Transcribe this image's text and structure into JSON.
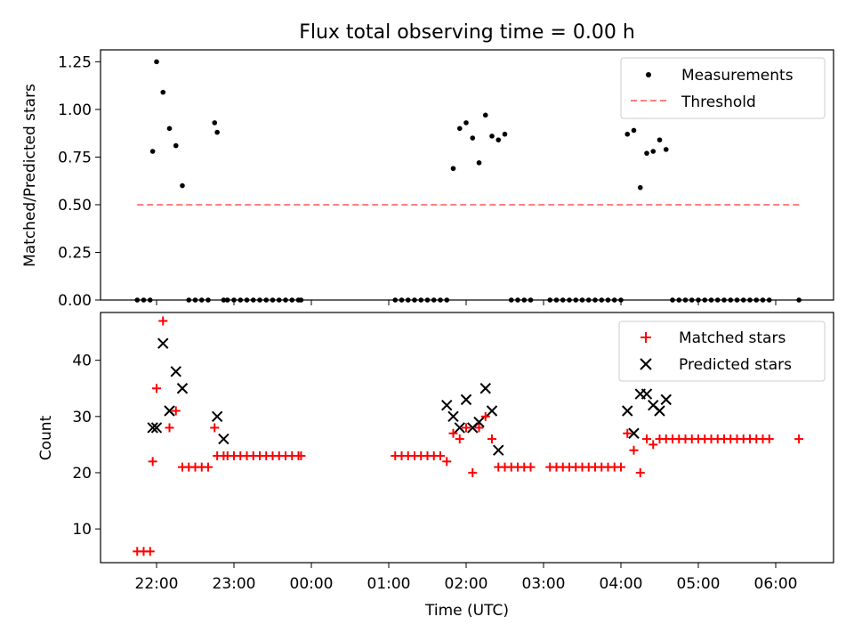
{
  "chart_data": [
    {
      "type": "scatter",
      "title": "Flux total observing time = 0.00 h",
      "xlabel": "",
      "ylabel": "Matched/Predicted stars",
      "ylim": [
        0,
        1.3125
      ],
      "yticks": [
        "0.00",
        "0.25",
        "0.50",
        "0.75",
        "1.00",
        "1.25"
      ],
      "ytick_values": [
        0,
        0.25,
        0.5,
        0.75,
        1.0,
        1.25
      ],
      "legend_position": "top-right",
      "series": [
        {
          "name": "Measurements",
          "marker": "dot",
          "color": "#000000",
          "x": [
            "21:45",
            "21:50",
            "21:55",
            "21:57",
            "22:00",
            "22:05",
            "22:10",
            "22:15",
            "22:20",
            "22:25",
            "22:30",
            "22:35",
            "22:40",
            "22:45",
            "22:47",
            "22:52",
            "22:55",
            "23:00",
            "23:05",
            "23:10",
            "23:15",
            "23:20",
            "23:25",
            "23:30",
            "23:35",
            "23:40",
            "23:45",
            "23:50",
            "23:52",
            "01:05",
            "01:10",
            "01:15",
            "01:20",
            "01:25",
            "01:30",
            "01:35",
            "01:40",
            "01:45",
            "01:50",
            "01:55",
            "02:00",
            "02:05",
            "02:10",
            "02:15",
            "02:20",
            "02:25",
            "02:30",
            "02:35",
            "02:40",
            "02:45",
            "02:50",
            "03:05",
            "03:10",
            "03:15",
            "03:20",
            "03:25",
            "03:30",
            "03:35",
            "03:40",
            "03:45",
            "03:50",
            "03:55",
            "04:00",
            "04:05",
            "04:10",
            "04:15",
            "04:20",
            "04:25",
            "04:30",
            "04:35",
            "04:40",
            "04:45",
            "04:50",
            "04:55",
            "05:00",
            "05:05",
            "05:10",
            "05:15",
            "05:20",
            "05:25",
            "05:30",
            "05:35",
            "05:40",
            "05:45",
            "05:50",
            "05:55",
            "06:18"
          ],
          "y": [
            0,
            0,
            0,
            0.78,
            1.25,
            1.09,
            0.9,
            0.81,
            0.6,
            0,
            0,
            0,
            0,
            0.93,
            0.88,
            0,
            0,
            0,
            0,
            0,
            0,
            0,
            0,
            0,
            0,
            0,
            0,
            0,
            0,
            0,
            0,
            0,
            0,
            0,
            0,
            0,
            0,
            0,
            0.69,
            0.9,
            0.93,
            0.85,
            0.72,
            0.97,
            0.86,
            0.84,
            0.87,
            0,
            0,
            0,
            0,
            0,
            0,
            0,
            0,
            0,
            0,
            0,
            0,
            0,
            0,
            0,
            0,
            0.87,
            0.89,
            0.59,
            0.77,
            0.78,
            0.84,
            0.79,
            0,
            0,
            0,
            0,
            0,
            0,
            0,
            0,
            0,
            0,
            0,
            0,
            0,
            0,
            0,
            0,
            0
          ]
        },
        {
          "name": "Threshold",
          "style": "dashed",
          "color": "#ff7f7f",
          "x": [
            "21:45",
            "06:20"
          ],
          "y": [
            0.5,
            0.5
          ]
        }
      ]
    },
    {
      "type": "scatter",
      "title": "",
      "xlabel": "Time (UTC)",
      "ylabel": "Count",
      "ylim": [
        4,
        48.5
      ],
      "yticks": [
        "10",
        "20",
        "30",
        "40"
      ],
      "ytick_values": [
        10,
        20,
        30,
        40
      ],
      "xticks": [
        "22:00",
        "23:00",
        "00:00",
        "01:00",
        "02:00",
        "03:00",
        "04:00",
        "05:00",
        "06:00"
      ],
      "legend_position": "top-right",
      "series": [
        {
          "name": "Matched stars",
          "marker": "plus",
          "color": "#ff0000",
          "x": [
            "21:45",
            "21:50",
            "21:55",
            "21:57",
            "22:00",
            "22:05",
            "22:10",
            "22:15",
            "22:20",
            "22:25",
            "22:30",
            "22:35",
            "22:40",
            "22:45",
            "22:47",
            "22:52",
            "22:55",
            "23:00",
            "23:05",
            "23:10",
            "23:15",
            "23:20",
            "23:25",
            "23:30",
            "23:35",
            "23:40",
            "23:45",
            "23:50",
            "23:52",
            "01:05",
            "01:10",
            "01:15",
            "01:20",
            "01:25",
            "01:30",
            "01:35",
            "01:40",
            "01:45",
            "01:50",
            "01:55",
            "02:00",
            "02:05",
            "02:10",
            "02:15",
            "02:20",
            "02:25",
            "02:30",
            "02:35",
            "02:40",
            "02:45",
            "02:50",
            "03:05",
            "03:10",
            "03:15",
            "03:20",
            "03:25",
            "03:30",
            "03:35",
            "03:40",
            "03:45",
            "03:50",
            "03:55",
            "04:00",
            "04:05",
            "04:10",
            "04:15",
            "04:20",
            "04:25",
            "04:30",
            "04:35",
            "04:40",
            "04:45",
            "04:50",
            "04:55",
            "05:00",
            "05:05",
            "05:10",
            "05:15",
            "05:20",
            "05:25",
            "05:30",
            "05:35",
            "05:40",
            "05:45",
            "05:50",
            "05:55",
            "06:18"
          ],
          "y": [
            6,
            6,
            6,
            22,
            35,
            47,
            28,
            31,
            21,
            21,
            21,
            21,
            21,
            28,
            23,
            23,
            23,
            23,
            23,
            23,
            23,
            23,
            23,
            23,
            23,
            23,
            23,
            23,
            23,
            23,
            23,
            23,
            23,
            23,
            23,
            23,
            23,
            22,
            27,
            26,
            28,
            20,
            28,
            30,
            26,
            21,
            21,
            21,
            21,
            21,
            21,
            21,
            21,
            21,
            21,
            21,
            21,
            21,
            21,
            21,
            21,
            21,
            21,
            27,
            24,
            20,
            26,
            25,
            26,
            26,
            26,
            26,
            26,
            26,
            26,
            26,
            26,
            26,
            26,
            26,
            26,
            26,
            26,
            26,
            26,
            26,
            26
          ]
        },
        {
          "name": "Predicted stars",
          "marker": "x",
          "color": "#000000",
          "x": [
            "21:57",
            "22:00",
            "22:05",
            "22:10",
            "22:15",
            "22:20",
            "22:47",
            "22:52",
            "01:45",
            "01:50",
            "01:55",
            "02:00",
            "02:05",
            "02:10",
            "02:15",
            "02:20",
            "02:25",
            "04:05",
            "04:10",
            "04:15",
            "04:20",
            "04:25",
            "04:30",
            "04:35"
          ],
          "y": [
            28,
            28,
            43,
            31,
            38,
            35,
            30,
            26,
            32,
            30,
            28,
            33,
            28,
            29,
            35,
            31,
            24,
            31,
            27,
            34,
            34,
            32,
            31,
            33
          ]
        }
      ]
    }
  ]
}
